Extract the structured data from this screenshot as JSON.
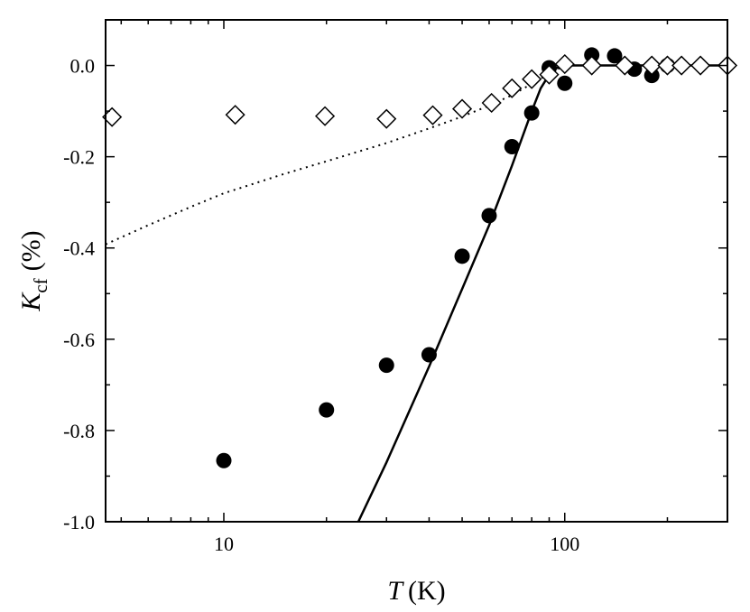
{
  "chart_data": {
    "type": "scatter",
    "title": "",
    "xlabel": {
      "symbol": "T",
      "unit": "(K)"
    },
    "ylabel": {
      "symbol": "K",
      "subscript": "cf",
      "unit": "(%)"
    },
    "x_scale": "log",
    "xlim": [
      4.5,
      300
    ],
    "ylim": [
      -1.0,
      0.1
    ],
    "x_major_ticks": [
      10,
      100
    ],
    "x_tick_labels": [
      "10",
      "100"
    ],
    "y_major_ticks": [
      -1.0,
      -0.8,
      -0.6,
      -0.4,
      -0.2,
      0.0
    ],
    "y_tick_labels": [
      "-1.0",
      "-0.8",
      "-0.6",
      "-0.4",
      "-0.2",
      "0.0"
    ],
    "y_minor_step": 0.1,
    "grid": false,
    "legend": "none",
    "series": [
      {
        "marker": "filled-circle",
        "color": "#000000",
        "x": [
          10,
          20,
          30,
          40,
          50,
          60,
          70,
          80,
          90,
          100,
          120,
          140,
          160,
          180,
          200
        ],
        "y": [
          -0.866,
          -0.755,
          -0.657,
          -0.634,
          -0.418,
          -0.329,
          -0.178,
          -0.104,
          -0.005,
          -0.039,
          0.023,
          0.021,
          -0.008,
          -0.022,
          0.0
        ]
      },
      {
        "marker": "open-diamond",
        "color": "#000000",
        "x": [
          4.7,
          10.8,
          19.8,
          30,
          41,
          50,
          61,
          70,
          80,
          90,
          100,
          120,
          150,
          180,
          200,
          220,
          250,
          300
        ],
        "y": [
          -0.113,
          -0.108,
          -0.111,
          -0.117,
          -0.109,
          -0.095,
          -0.082,
          -0.05,
          -0.03,
          -0.02,
          0.003,
          0.0,
          0.0,
          0.0,
          0.0,
          0.0,
          0.0,
          0.0
        ]
      },
      {
        "line": "solid",
        "color": "#000000",
        "x": [
          24.8,
          30,
          40,
          50,
          60,
          70,
          80,
          85,
          90,
          95,
          100,
          110,
          300
        ],
        "y": [
          -1.0,
          -0.87,
          -0.66,
          -0.49,
          -0.35,
          -0.22,
          -0.1,
          -0.05,
          -0.02,
          -0.005,
          0.0,
          0.0,
          0.0
        ]
      },
      {
        "line": "dotted",
        "color": "#000000",
        "x": [
          4.5,
          6,
          8,
          10,
          15,
          20,
          30,
          40,
          50,
          60,
          70,
          80,
          90,
          100
        ],
        "y": [
          -0.392,
          -0.35,
          -0.31,
          -0.28,
          -0.238,
          -0.21,
          -0.17,
          -0.138,
          -0.112,
          -0.088,
          -0.065,
          -0.04,
          -0.018,
          0.0
        ]
      }
    ]
  }
}
